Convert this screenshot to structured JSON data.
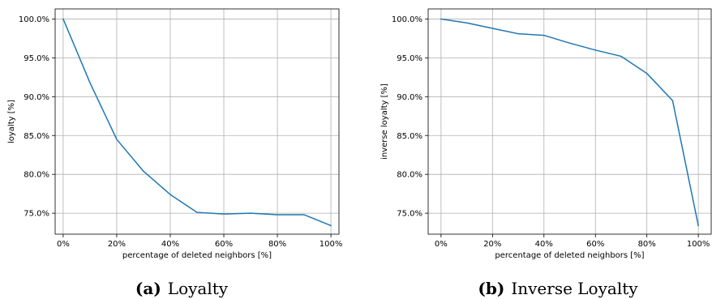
{
  "chart_data": [
    {
      "type": "line",
      "caption_tag": "(a)",
      "caption": "Loyalty",
      "xlabel": "percentage of deleted neighbors [%]",
      "ylabel": "loyalty [%]",
      "xlim": [
        -3,
        103
      ],
      "ylim": [
        72.3,
        101.3
      ],
      "x_ticks": [
        0,
        20,
        40,
        60,
        80,
        100
      ],
      "x_tick_labels": [
        "0%",
        "20%",
        "40%",
        "60%",
        "80%",
        "100%"
      ],
      "y_ticks": [
        75,
        80,
        85,
        90,
        95,
        100
      ],
      "y_tick_labels": [
        "75.0%",
        "80.0%",
        "85.0%",
        "90.0%",
        "95.0%",
        "100.0%"
      ],
      "grid": true,
      "series": [
        {
          "color": "#1f77b4",
          "x": [
            0,
            10,
            20,
            30,
            40,
            50,
            60,
            70,
            80,
            90,
            100
          ],
          "y": [
            100.0,
            91.8,
            84.5,
            80.4,
            77.4,
            75.1,
            74.9,
            75.0,
            74.8,
            74.8,
            73.4
          ]
        }
      ]
    },
    {
      "type": "line",
      "caption_tag": "(b)",
      "caption": "Inverse Loyalty",
      "xlabel": "percentage of deleted neighbors [%]",
      "ylabel": "inverse loyalty [%]",
      "xlim": [
        -5,
        105
      ],
      "ylim": [
        72.3,
        101.3
      ],
      "x_ticks": [
        0,
        20,
        40,
        60,
        80,
        100
      ],
      "x_tick_labels": [
        "0%",
        "20%",
        "40%",
        "60%",
        "80%",
        "100%"
      ],
      "y_ticks": [
        75,
        80,
        85,
        90,
        95,
        100
      ],
      "y_tick_labels": [
        "75.0%",
        "80.0%",
        "85.0%",
        "90.0%",
        "95.0%",
        "100.0%"
      ],
      "grid": true,
      "series": [
        {
          "color": "#1f77b4",
          "x": [
            0,
            10,
            20,
            30,
            40,
            50,
            60,
            70,
            80,
            90,
            100
          ],
          "y": [
            100.0,
            99.5,
            98.8,
            98.1,
            97.9,
            96.9,
            96.0,
            95.2,
            93.0,
            89.5,
            73.4
          ]
        }
      ]
    }
  ]
}
